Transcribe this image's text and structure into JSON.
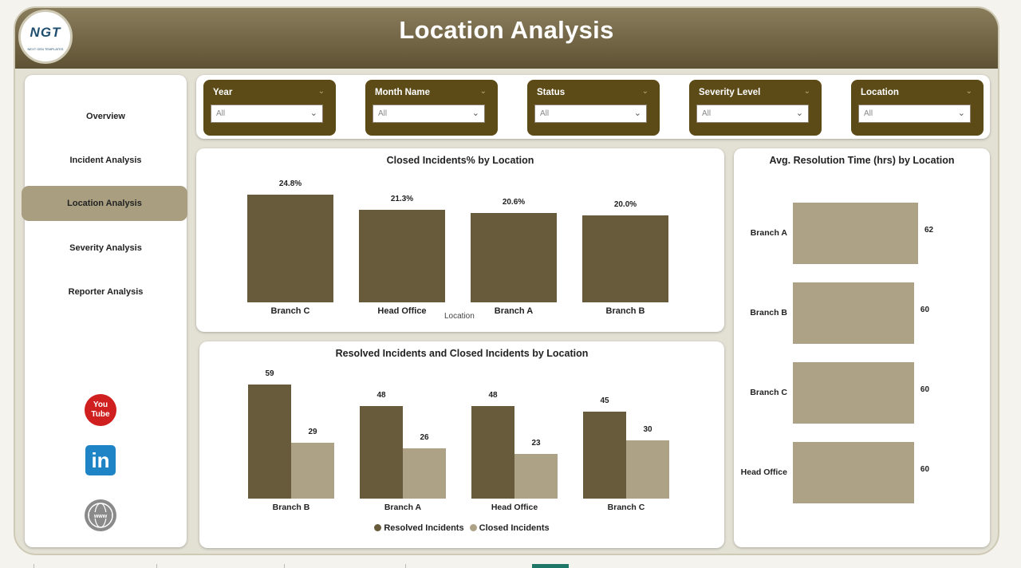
{
  "header": {
    "title": "Location Analysis",
    "logo_text": "NGT",
    "logo_sub": "NEXT GEN TEMPLATES"
  },
  "nav": {
    "items": [
      {
        "label": "Overview"
      },
      {
        "label": "Incident Analysis"
      },
      {
        "label": "Location Analysis"
      },
      {
        "label": "Severity Analysis"
      },
      {
        "label": "Reporter Analysis"
      }
    ],
    "active": "Location Analysis"
  },
  "social": {
    "youtube": "You\nTube"
  },
  "filters": [
    {
      "label": "Year",
      "value": "All"
    },
    {
      "label": "Month Name",
      "value": "All"
    },
    {
      "label": "Status",
      "value": "All"
    },
    {
      "label": "Severity Level",
      "value": "All"
    },
    {
      "label": "Location",
      "value": "All"
    }
  ],
  "colors": {
    "dark_bar": "#685b3c",
    "light_bar": "#ada286",
    "filter_bg": "#5d4b17",
    "header_top": "#8a7d5c",
    "header_bottom": "#5e5234",
    "active_nav": "#a99e80"
  },
  "chart_data": [
    {
      "type": "bar",
      "title": "Closed Incidents% by Location",
      "xlabel": "Location",
      "categories": [
        "Branch C",
        "Head Office",
        "Branch A",
        "Branch B"
      ],
      "values": [
        24.8,
        21.3,
        20.6,
        20.0
      ],
      "labels": [
        "24.8%",
        "21.3%",
        "20.6%",
        "20.0%"
      ],
      "ylim": [
        0,
        24.8
      ]
    },
    {
      "type": "bar",
      "title": "Resolved Incidents and Closed Incidents by Location",
      "categories": [
        "Branch B",
        "Branch A",
        "Head Office",
        "Branch C"
      ],
      "series": [
        {
          "name": "Resolved Incidents",
          "values": [
            59,
            48,
            48,
            45
          ]
        },
        {
          "name": "Closed Incidents",
          "values": [
            29,
            26,
            23,
            30
          ]
        }
      ],
      "ylim": [
        0,
        59
      ],
      "legend": "bottom"
    },
    {
      "type": "bar",
      "orientation": "horizontal",
      "title": "Avg. Resolution Time (hrs) by Location",
      "categories": [
        "Branch A",
        "Branch B",
        "Branch C",
        "Head Office"
      ],
      "values": [
        62,
        60,
        60,
        60
      ],
      "xlim": [
        0,
        62
      ]
    }
  ]
}
